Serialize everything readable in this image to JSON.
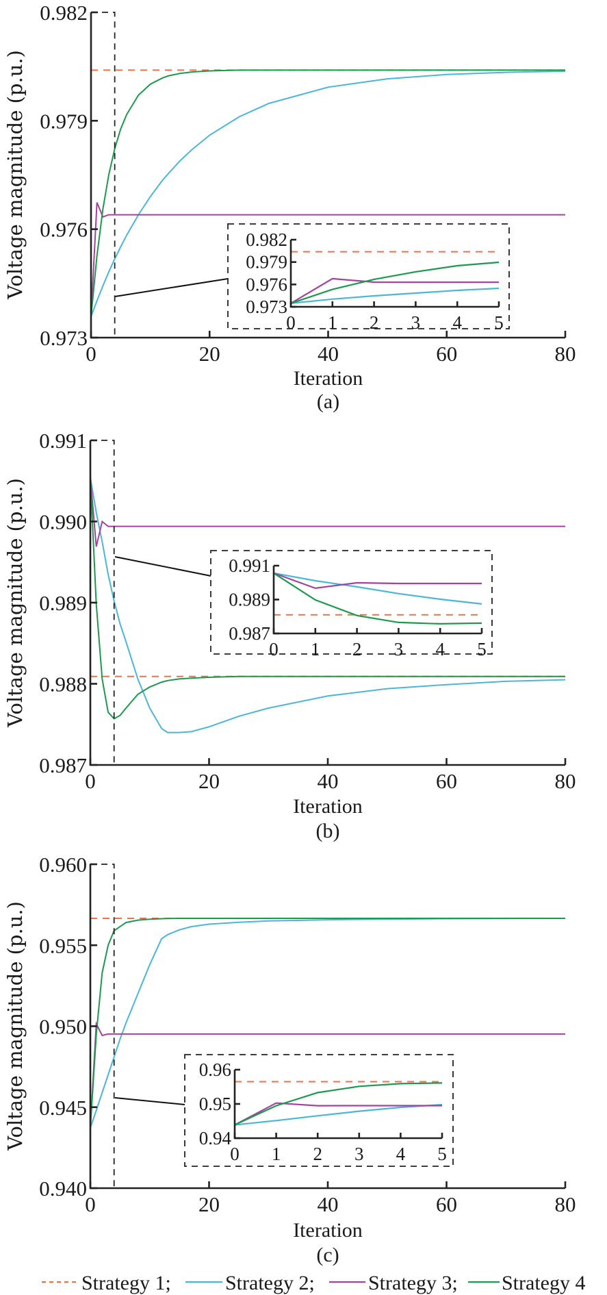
{
  "colors": {
    "Strategy 1": "#e8734e",
    "Strategy 2": "#4ab6d8",
    "Strategy 3": "#a3439e",
    "Strategy 4": "#1a9a4c"
  },
  "legend": [
    {
      "label": "Strategy 1;",
      "style": "dashed"
    },
    {
      "label": "Strategy 2;",
      "style": "solid"
    },
    {
      "label": "Strategy 3;",
      "style": "solid"
    },
    {
      "label": "Strategy 4",
      "style": "solid"
    }
  ],
  "chart_data": [
    {
      "type": "line",
      "panel_label": "(a)",
      "xlabel": "Iteration",
      "ylabel": "Voltage magnitude (p.u.)",
      "xlim": [
        0,
        80
      ],
      "ylim": [
        0.973,
        0.982
      ],
      "xticks": [
        "0",
        "20",
        "40",
        "60",
        "80"
      ],
      "yticks": [
        "0.973",
        "0.976",
        "0.979",
        "0.982"
      ],
      "zoom_region_xlim": [
        0,
        4
      ],
      "x": [
        0,
        1,
        2,
        3,
        4,
        5,
        6,
        8,
        10,
        12,
        13,
        15,
        17,
        20,
        25,
        30,
        40,
        50,
        60,
        70,
        80
      ],
      "series": [
        {
          "name": "Strategy 1",
          "values": [
            0.9804,
            0.9804,
            0.9804,
            0.9804,
            0.9804,
            0.9804,
            0.9804,
            0.9804,
            0.9804,
            0.9804,
            0.9804,
            0.9804,
            0.9804,
            0.9804,
            0.9804,
            0.9804,
            0.9804,
            0.9804,
            0.9804,
            0.9804,
            0.9804
          ]
        },
        {
          "name": "Strategy 2",
          "values": [
            0.97358,
            0.97402,
            0.97443,
            0.97482,
            0.97518,
            0.97551,
            0.97583,
            0.9764,
            0.9769,
            0.97734,
            0.97753,
            0.97789,
            0.9782,
            0.9786,
            0.97911,
            0.97948,
            0.97993,
            0.98016,
            0.98028,
            0.98034,
            0.98037
          ]
        },
        {
          "name": "Strategy 3",
          "values": [
            0.97358,
            0.97674,
            0.97634,
            0.9764,
            0.9764,
            0.9764,
            0.9764,
            0.9764,
            0.9764,
            0.9764,
            0.9764,
            0.9764,
            0.9764,
            0.9764,
            0.9764,
            0.9764,
            0.9764,
            0.9764,
            0.9764,
            0.9764,
            0.9764
          ]
        },
        {
          "name": "Strategy 4",
          "values": [
            0.97358,
            0.97527,
            0.97655,
            0.97751,
            0.97823,
            0.97877,
            0.97917,
            0.97971,
            0.98001,
            0.98018,
            0.98024,
            0.98031,
            0.98035,
            0.98038,
            0.9804,
            0.9804,
            0.9804,
            0.9804,
            0.9804,
            0.9804,
            0.9804
          ]
        }
      ],
      "inset": {
        "xlim": [
          0,
          5
        ],
        "ylim": [
          0.973,
          0.982
        ],
        "xticks": [
          "0",
          "1",
          "2",
          "3",
          "4",
          "5"
        ],
        "yticks": [
          "0.973",
          "0.976",
          "0.979",
          "0.982"
        ],
        "x": [
          0,
          1,
          2,
          3,
          4,
          5
        ],
        "series": [
          {
            "name": "Strategy 1",
            "values": [
              0.98038,
              0.98038,
              0.98038,
              0.98038,
              0.98038,
              0.98038
            ]
          },
          {
            "name": "Strategy 2",
            "values": [
              0.97347,
              0.97403,
              0.97447,
              0.97484,
              0.9752,
              0.97548
            ]
          },
          {
            "name": "Strategy 3",
            "values": [
              0.97347,
              0.97677,
              0.97631,
              0.9763,
              0.9763,
              0.9763
            ]
          },
          {
            "name": "Strategy 4",
            "values": [
              0.97347,
              0.97533,
              0.97668,
              0.97769,
              0.97851,
              0.97897
            ]
          }
        ]
      }
    },
    {
      "type": "line",
      "panel_label": "(b)",
      "xlabel": "Iteration",
      "ylabel": "Voltage magnitude (p.u.)",
      "xlim": [
        0,
        80
      ],
      "ylim": [
        0.987,
        0.991
      ],
      "xticks": [
        "0",
        "20",
        "40",
        "60",
        "80"
      ],
      "yticks": [
        "0.987",
        "0.988",
        "0.989",
        "0.990",
        "0.991"
      ],
      "zoom_region_xlim": [
        0,
        4
      ],
      "x": [
        0,
        1,
        2,
        3,
        4,
        5,
        6,
        8,
        10,
        12,
        13,
        15,
        17,
        20,
        25,
        30,
        40,
        50,
        60,
        70,
        80
      ],
      "series": [
        {
          "name": "Strategy 1",
          "values": [
            0.98809,
            0.98809,
            0.98809,
            0.98809,
            0.98809,
            0.98809,
            0.98809,
            0.98809,
            0.98809,
            0.98809,
            0.98809,
            0.98809,
            0.98809,
            0.98809,
            0.98809,
            0.98809,
            0.98809,
            0.98809,
            0.98809,
            0.98809,
            0.98809
          ]
        },
        {
          "name": "Strategy 2",
          "values": [
            0.99054,
            0.99011,
            0.98975,
            0.98935,
            0.98902,
            0.98874,
            0.98852,
            0.98806,
            0.9877,
            0.98745,
            0.9874,
            0.9874,
            0.98741,
            0.98747,
            0.9876,
            0.9877,
            0.98785,
            0.98794,
            0.98799,
            0.98803,
            0.98805
          ]
        },
        {
          "name": "Strategy 3",
          "values": [
            0.99054,
            0.98969,
            0.99,
            0.98994,
            0.98994,
            0.98994,
            0.98994,
            0.98994,
            0.98994,
            0.98994,
            0.98994,
            0.98994,
            0.98994,
            0.98994,
            0.98994,
            0.98994,
            0.98994,
            0.98994,
            0.98994,
            0.98994,
            0.98994
          ]
        },
        {
          "name": "Strategy 4",
          "values": [
            0.99054,
            0.98898,
            0.98806,
            0.98765,
            0.98757,
            0.98761,
            0.9877,
            0.98787,
            0.98796,
            0.98802,
            0.98804,
            0.98806,
            0.98807,
            0.98808,
            0.98809,
            0.98809,
            0.98809,
            0.98809,
            0.98809,
            0.98809,
            0.98809
          ]
        }
      ],
      "inset": {
        "xlim": [
          0,
          5
        ],
        "ylim": [
          0.987,
          0.991
        ],
        "xticks": [
          "0",
          "1",
          "2",
          "3",
          "4",
          "5"
        ],
        "yticks": [
          "0.987",
          "0.989",
          "0.991"
        ],
        "x": [
          0,
          1,
          2,
          3,
          4,
          5
        ],
        "series": [
          {
            "name": "Strategy 1",
            "values": [
              0.9881,
              0.9881,
              0.9881,
              0.9881,
              0.9881,
              0.9881
            ]
          },
          {
            "name": "Strategy 2",
            "values": [
              0.99056,
              0.99011,
              0.98975,
              0.98935,
              0.98902,
              0.98874
            ]
          },
          {
            "name": "Strategy 3",
            "values": [
              0.99056,
              0.98967,
              0.98999,
              0.98995,
              0.98995,
              0.98995
            ]
          },
          {
            "name": "Strategy 4",
            "values": [
              0.99056,
              0.98898,
              0.98806,
              0.98765,
              0.98757,
              0.98761
            ]
          }
        ]
      }
    },
    {
      "type": "line",
      "panel_label": "(c)",
      "xlabel": "Iteration",
      "ylabel": "Voltage magnitude (p.u.)",
      "xlim": [
        0,
        80
      ],
      "ylim": [
        0.94,
        0.96
      ],
      "xticks": [
        "0",
        "20",
        "40",
        "60",
        "80"
      ],
      "yticks": [
        "0.940",
        "0.945",
        "0.950",
        "0.955",
        "0.960"
      ],
      "zoom_region_xlim": [
        0,
        4
      ],
      "x": [
        0,
        1,
        2,
        3,
        4,
        5,
        6,
        8,
        10,
        12,
        13,
        15,
        17,
        20,
        25,
        30,
        40,
        50,
        60,
        70,
        80
      ],
      "series": [
        {
          "name": "Strategy 1",
          "values": [
            0.95666,
            0.95666,
            0.95666,
            0.95666,
            0.95666,
            0.95666,
            0.95666,
            0.95666,
            0.95666,
            0.95666,
            0.95666,
            0.95666,
            0.95666,
            0.95666,
            0.95666,
            0.95666,
            0.95666,
            0.95666,
            0.95666,
            0.95666,
            0.95666
          ]
        },
        {
          "name": "Strategy 2",
          "values": [
            0.94373,
            0.9448,
            0.9459,
            0.947,
            0.9481,
            0.9492,
            0.9502,
            0.952,
            0.9538,
            0.9554,
            0.95565,
            0.95595,
            0.95615,
            0.9563,
            0.95642,
            0.9565,
            0.95657,
            0.95661,
            0.95664,
            0.95665,
            0.95666
          ]
        },
        {
          "name": "Strategy 3",
          "values": [
            0.94373,
            0.95015,
            0.94943,
            0.94952,
            0.94952,
            0.94952,
            0.94952,
            0.94952,
            0.94952,
            0.94952,
            0.94952,
            0.94952,
            0.94952,
            0.94952,
            0.94952,
            0.94952,
            0.94952,
            0.94952,
            0.94952,
            0.94952,
            0.94952
          ]
        },
        {
          "name": "Strategy 4",
          "values": [
            0.94373,
            0.9495,
            0.9533,
            0.955,
            0.9559,
            0.95615,
            0.9564,
            0.95655,
            0.95661,
            0.95664,
            0.95665,
            0.95666,
            0.95666,
            0.95666,
            0.95666,
            0.95666,
            0.95666,
            0.95666,
            0.95666,
            0.95666,
            0.95666
          ]
        }
      ],
      "inset": {
        "xlim": [
          0,
          5
        ],
        "ylim": [
          0.94,
          0.96
        ],
        "xticks": [
          "0",
          "1",
          "2",
          "3",
          "4",
          "5"
        ],
        "yticks": [
          "0.94",
          "0.95",
          "0.96"
        ],
        "x": [
          0,
          1,
          2,
          3,
          4,
          5
        ],
        "series": [
          {
            "name": "Strategy 1",
            "values": [
              0.95651,
              0.95651,
              0.95651,
              0.95651,
              0.95651,
              0.95651
            ]
          },
          {
            "name": "Strategy 2",
            "values": [
              0.94387,
              0.94513,
              0.94653,
              0.94787,
              0.949,
              0.9498
            ]
          },
          {
            "name": "Strategy 3",
            "values": [
              0.94387,
              0.95027,
              0.94947,
              0.9495,
              0.9495,
              0.9495
            ]
          },
          {
            "name": "Strategy 4",
            "values": [
              0.94387,
              0.94947,
              0.95329,
              0.95513,
              0.95592,
              0.95612
            ]
          }
        ]
      }
    }
  ]
}
